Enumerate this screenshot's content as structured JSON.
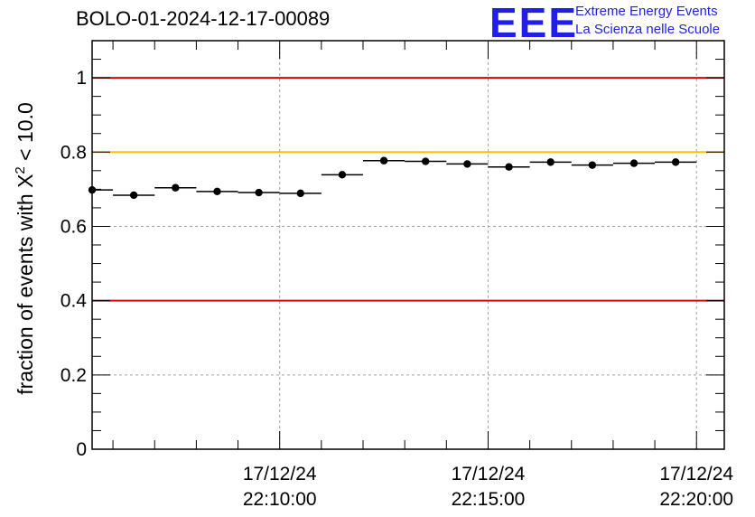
{
  "title": "BOLO-01-2024-12-17-00089",
  "logo": {
    "letters": "EEE",
    "line1": "Extreme Energy Events",
    "line2": "La Scienza nelle Scuole",
    "color": "#1f1fe6"
  },
  "chart_data": {
    "type": "scatter",
    "ylabel": "fraction of events with χ² < 10.0",
    "ylabel_text": "fraction of events with X",
    "ylabel_sup": "2",
    "ylabel_tail": " < 10.0",
    "ylim": [
      0,
      1.1
    ],
    "yticks": [
      "0",
      "0.2",
      "0.4",
      "0.6",
      "0.8",
      "1"
    ],
    "ytick_values": [
      0,
      0.2,
      0.4,
      0.6,
      0.8,
      1.0
    ],
    "x_range": [
      "22:05:30",
      "22:20:40"
    ],
    "xticks": [
      {
        "time": "22:10:00",
        "date": "17/12/24",
        "clock": "22:10:00"
      },
      {
        "time": "22:15:00",
        "date": "17/12/24",
        "clock": "22:15:00"
      },
      {
        "time": "22:20:00",
        "date": "17/12/24",
        "clock": "22:20:00"
      }
    ],
    "grid": true,
    "reference_lines": [
      {
        "y": 1.0,
        "color": "#e00000"
      },
      {
        "y": 0.8,
        "color": "#ffc000"
      },
      {
        "y": 0.4,
        "color": "#e00000"
      }
    ],
    "series": [
      {
        "bin_width": "60s",
        "points": [
          {
            "x": "22:05:30",
            "y": 0.698
          },
          {
            "x": "22:06:30",
            "y": 0.684
          },
          {
            "x": "22:07:30",
            "y": 0.704
          },
          {
            "x": "22:08:30",
            "y": 0.694
          },
          {
            "x": "22:09:30",
            "y": 0.691
          },
          {
            "x": "22:10:30",
            "y": 0.689
          },
          {
            "x": "22:11:30",
            "y": 0.739
          },
          {
            "x": "22:12:30",
            "y": 0.777
          },
          {
            "x": "22:13:30",
            "y": 0.775
          },
          {
            "x": "22:14:30",
            "y": 0.768
          },
          {
            "x": "22:15:30",
            "y": 0.76
          },
          {
            "x": "22:16:30",
            "y": 0.773
          },
          {
            "x": "22:17:30",
            "y": 0.765
          },
          {
            "x": "22:18:30",
            "y": 0.77
          },
          {
            "x": "22:19:30",
            "y": 0.773
          }
        ]
      }
    ]
  }
}
